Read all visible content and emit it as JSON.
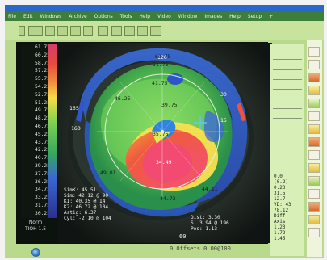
{
  "window": {
    "menu": [
      "File",
      "Edit",
      "Windows",
      "Archive",
      "Options",
      "Tools",
      "Help",
      "Video",
      "Window",
      "Images",
      "Help",
      "Setup",
      "+"
    ]
  },
  "toolbar": {
    "icons": [
      "open-file-icon",
      "camera-icon",
      "print-icon",
      "settings-icon",
      "view-icon",
      "zoom-icon",
      "grid-icon",
      "line-icon",
      "marker-icon",
      "ring-icon",
      "pupil-icon"
    ]
  },
  "scale": {
    "labels": [
      "61.75",
      "60.25",
      "58.75",
      "57.25",
      "55.75",
      "54.25",
      "52.75",
      "51.25",
      "49.75",
      "48.25",
      "46.75",
      "45.25",
      "43.75",
      "42.25",
      "40.75",
      "39.25",
      "37.75",
      "36.25",
      "34.75",
      "33.25",
      "31.75",
      "30.25"
    ],
    "footer_1": "Norm",
    "footer_2": "TIOH 1.5"
  },
  "map": {
    "values": [
      "60.75",
      "51.75",
      "41.75",
      "46.25",
      "39.75",
      "35.75",
      "34.49",
      "49.01",
      "44.11",
      "44.73"
    ]
  },
  "overlay": {
    "lines_left": [
      "SimK: 45.51",
      "Sim: 42.12 @ 90",
      "K1: 40.35 @ 14",
      "K2: 46.72 @ 104",
      "Astig: 6.37",
      "Cyl: -2.10 @ 104"
    ],
    "lines_right": [
      "Dist: 3.30",
      "S: 3.94 @ 196",
      "Pos: 1.13"
    ],
    "bottom_value": "60",
    "offsets": "0 Offsets 0.00@100"
  },
  "sidebar": {
    "lines": [
      "0.0",
      "(0.2)",
      "0.23",
      "31.5",
      "12.7",
      "VD: 43",
      "78.12",
      "Diff",
      "Axis",
      "1.23",
      "1.72",
      "1.45"
    ]
  },
  "colors": {
    "background": "#0c130f",
    "frame": "#b9d98c",
    "titlebar": "#2a67c9",
    "menubar": "#3d7f3a",
    "accent": "#7ce45b",
    "warm": "#f15e3d",
    "hot": "#f44d67",
    "cool": "#3a5fdc"
  }
}
